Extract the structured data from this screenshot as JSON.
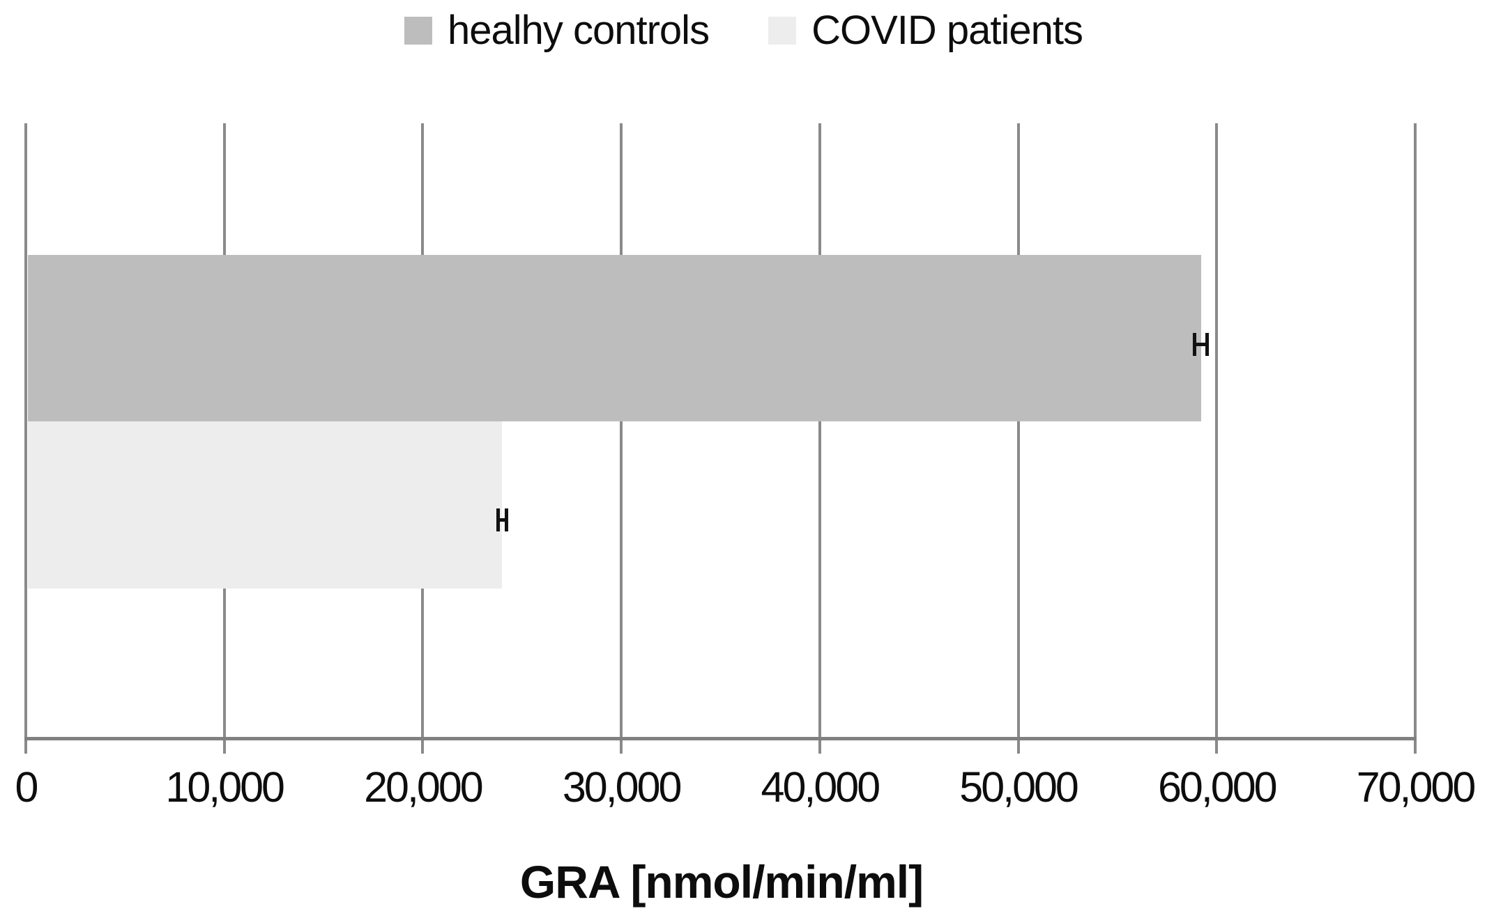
{
  "chart_data": {
    "type": "bar",
    "orientation": "horizontal",
    "xlabel": "GRA [nmol/min/ml]",
    "ylabel": "",
    "xlim": [
      0,
      70000
    ],
    "xticks": [
      0,
      10000,
      20000,
      30000,
      40000,
      50000,
      60000,
      70000
    ],
    "xtick_labels": [
      "0",
      "10,000",
      "20,000",
      "30,000",
      "40,000",
      "50,000",
      "60,000",
      "70,000"
    ],
    "grid": "vertical-gridlines-on",
    "legend_position": "top-center",
    "series": [
      {
        "name": "healhy controls",
        "value": 59200,
        "error": 400,
        "color": "#bdbdbd"
      },
      {
        "name": "COVID patients",
        "value": 24000,
        "error": 300,
        "color": "#ededed"
      }
    ]
  },
  "colors": {
    "gridline": "#8a8a8a",
    "axis": "#808080",
    "error_bar": "#121212",
    "text": "#0d0d0d",
    "background": "#ffffff"
  }
}
